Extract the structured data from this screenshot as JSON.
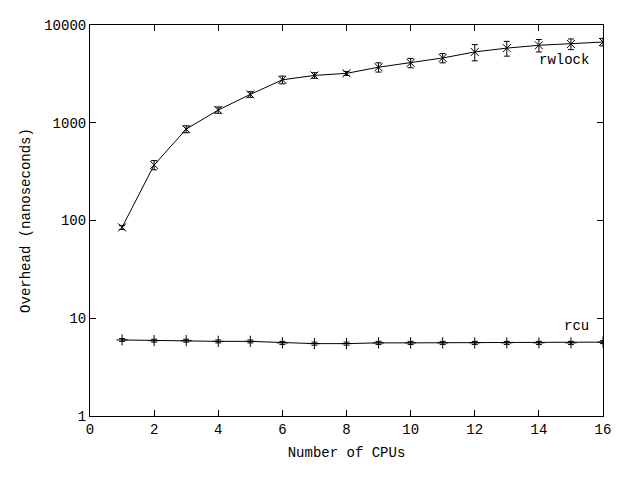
{
  "chart_data": {
    "type": "line",
    "x_label": "Number of CPUs",
    "y_label": "Overhead (nanoseconds)",
    "log": "y",
    "grid": false,
    "xlim": [
      0,
      16
    ],
    "xticks": [
      0,
      2,
      4,
      6,
      8,
      10,
      12,
      14,
      16
    ],
    "ylim": [
      1,
      10000
    ],
    "yticks": [
      1,
      10,
      100,
      1000,
      10000
    ],
    "x": [
      1,
      2,
      3,
      4,
      5,
      6,
      7,
      8,
      9,
      10,
      11,
      12,
      13,
      14,
      15,
      16
    ],
    "series": [
      {
        "name": "rwlock",
        "color": "#000000",
        "marker": "x",
        "line_style": "solid",
        "values": [
          85,
          370,
          860,
          1350,
          1950,
          2750,
          3050,
          3200,
          3700,
          4100,
          4600,
          5300,
          5800,
          6200,
          6400,
          6700
        ],
        "errors": [
          4,
          40,
          70,
          100,
          130,
          250,
          200,
          150,
          400,
          450,
          500,
          1000,
          1000,
          900,
          800,
          600
        ]
      },
      {
        "name": "rcu",
        "color": "#000000",
        "marker": "cross",
        "line_style": "solid",
        "values": [
          6.0,
          5.9,
          5.9,
          5.8,
          5.8,
          5.6,
          5.5,
          5.5,
          5.6,
          5.6,
          5.6,
          5.6,
          5.6,
          5.6,
          5.6,
          5.7
        ],
        "errors": [
          0.2,
          0.2,
          0.2,
          0.2,
          0.2,
          0.2,
          0.2,
          0.2,
          0.2,
          0.2,
          0.2,
          0.2,
          0.2,
          0.2,
          0.2,
          0.2
        ]
      }
    ]
  }
}
